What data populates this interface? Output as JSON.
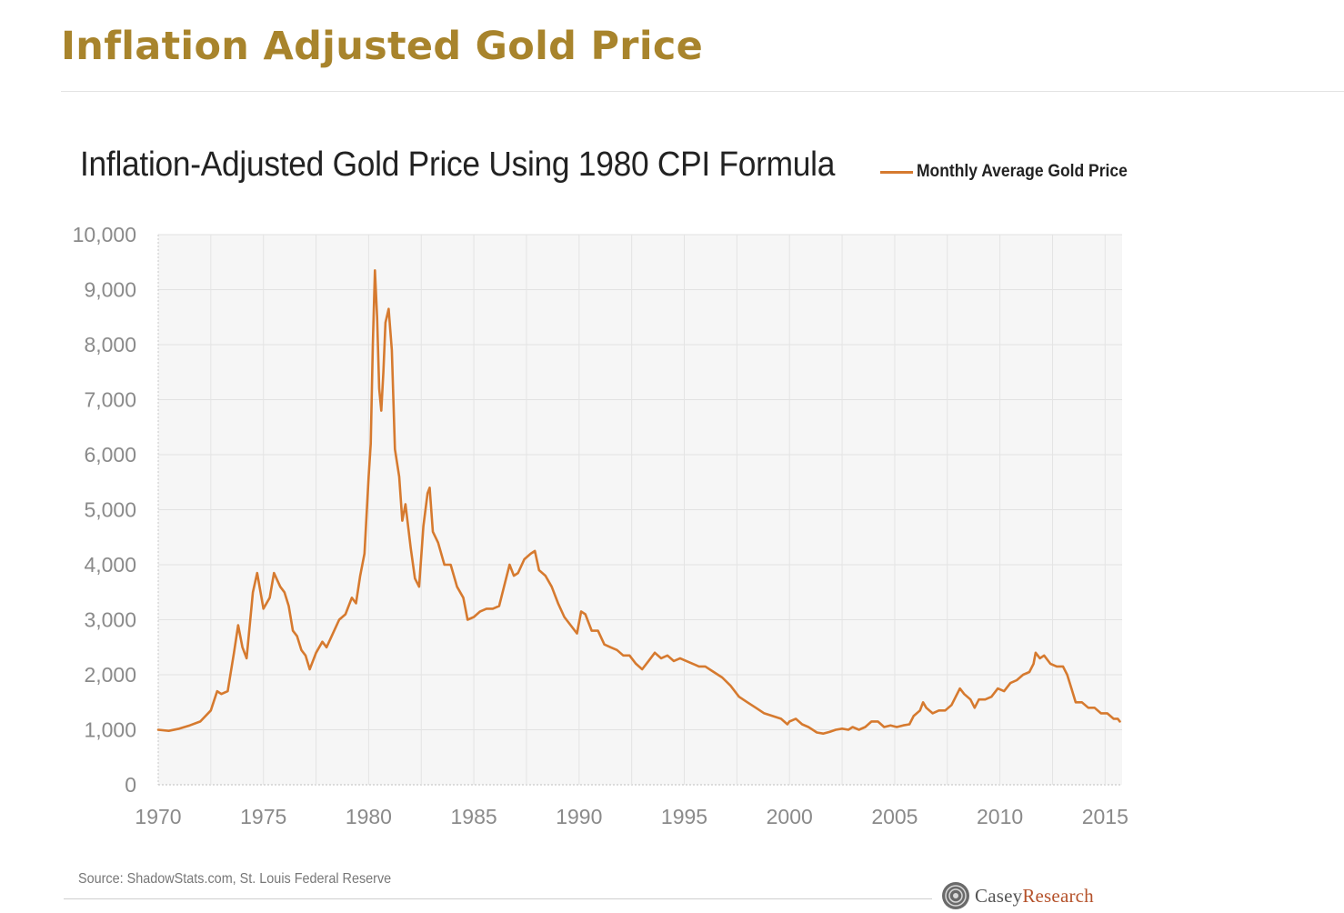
{
  "page": {
    "title": "Inflation Adjusted Gold Price"
  },
  "chart": {
    "title": "Inflation-Adjusted Gold Price Using 1980 CPI Formula",
    "legend_label": "Monthly Average Gold Price",
    "source": "Source: ShadowStats.com, St. Louis Federal Reserve",
    "logo": {
      "text_1": "Casey",
      "text_2": "Research"
    }
  },
  "colors": {
    "heading": "#a8842c",
    "series": "#d67a2f",
    "plot_background": "#f6f6f6",
    "logo_accent": "#b5522b"
  },
  "chart_data": {
    "type": "line",
    "title": "Inflation-Adjusted Gold Price Using 1980 CPI Formula",
    "xlabel": "",
    "ylabel": "",
    "xlim": [
      1970,
      2015.8
    ],
    "ylim": [
      0,
      10000
    ],
    "grid": true,
    "legend_position": "top-right",
    "x_ticks": [
      "1970",
      "1975",
      "1980",
      "1985",
      "1990",
      "1995",
      "2000",
      "2005",
      "2010",
      "2015"
    ],
    "y_ticks": [
      "0",
      "1,000",
      "2,000",
      "3,000",
      "4,000",
      "5,000",
      "6,000",
      "7,000",
      "8,000",
      "9,000",
      "10,000"
    ],
    "series": [
      {
        "name": "Monthly Average Gold Price",
        "color": "#d67a2f",
        "points": [
          [
            1970.0,
            1000
          ],
          [
            1970.5,
            980
          ],
          [
            1971.0,
            1020
          ],
          [
            1971.5,
            1080
          ],
          [
            1972.0,
            1150
          ],
          [
            1972.5,
            1350
          ],
          [
            1972.8,
            1700
          ],
          [
            1973.0,
            1650
          ],
          [
            1973.3,
            1700
          ],
          [
            1973.6,
            2400
          ],
          [
            1973.8,
            2900
          ],
          [
            1974.0,
            2500
          ],
          [
            1974.2,
            2300
          ],
          [
            1974.5,
            3500
          ],
          [
            1974.7,
            3850
          ],
          [
            1975.0,
            3200
          ],
          [
            1975.3,
            3400
          ],
          [
            1975.5,
            3850
          ],
          [
            1975.8,
            3600
          ],
          [
            1976.0,
            3500
          ],
          [
            1976.2,
            3250
          ],
          [
            1976.4,
            2800
          ],
          [
            1976.6,
            2700
          ],
          [
            1976.8,
            2450
          ],
          [
            1977.0,
            2350
          ],
          [
            1977.2,
            2100
          ],
          [
            1977.5,
            2400
          ],
          [
            1977.8,
            2600
          ],
          [
            1978.0,
            2500
          ],
          [
            1978.3,
            2750
          ],
          [
            1978.6,
            3000
          ],
          [
            1978.9,
            3100
          ],
          [
            1979.2,
            3400
          ],
          [
            1979.4,
            3300
          ],
          [
            1979.6,
            3800
          ],
          [
            1979.8,
            4200
          ],
          [
            1980.0,
            5600
          ],
          [
            1980.1,
            6200
          ],
          [
            1980.2,
            8000
          ],
          [
            1980.3,
            9350
          ],
          [
            1980.4,
            8500
          ],
          [
            1980.5,
            7200
          ],
          [
            1980.6,
            6800
          ],
          [
            1980.7,
            7500
          ],
          [
            1980.8,
            8400
          ],
          [
            1980.95,
            8650
          ],
          [
            1981.1,
            7900
          ],
          [
            1981.25,
            6100
          ],
          [
            1981.45,
            5600
          ],
          [
            1981.6,
            4800
          ],
          [
            1981.75,
            5100
          ],
          [
            1982.0,
            4300
          ],
          [
            1982.2,
            3750
          ],
          [
            1982.4,
            3600
          ],
          [
            1982.6,
            4700
          ],
          [
            1982.8,
            5300
          ],
          [
            1982.9,
            5400
          ],
          [
            1983.05,
            4600
          ],
          [
            1983.3,
            4400
          ],
          [
            1983.6,
            4000
          ],
          [
            1983.9,
            4000
          ],
          [
            1984.2,
            3600
          ],
          [
            1984.5,
            3400
          ],
          [
            1984.7,
            3000
          ],
          [
            1985.0,
            3050
          ],
          [
            1985.3,
            3150
          ],
          [
            1985.6,
            3200
          ],
          [
            1985.9,
            3200
          ],
          [
            1986.2,
            3250
          ],
          [
            1986.5,
            3700
          ],
          [
            1986.7,
            4000
          ],
          [
            1986.9,
            3800
          ],
          [
            1987.1,
            3850
          ],
          [
            1987.4,
            4100
          ],
          [
            1987.7,
            4200
          ],
          [
            1987.9,
            4250
          ],
          [
            1988.1,
            3900
          ],
          [
            1988.4,
            3800
          ],
          [
            1988.7,
            3600
          ],
          [
            1989.0,
            3300
          ],
          [
            1989.3,
            3050
          ],
          [
            1989.6,
            2900
          ],
          [
            1989.9,
            2750
          ],
          [
            1990.1,
            3150
          ],
          [
            1990.3,
            3100
          ],
          [
            1990.6,
            2800
          ],
          [
            1990.9,
            2800
          ],
          [
            1991.2,
            2550
          ],
          [
            1991.5,
            2500
          ],
          [
            1991.8,
            2450
          ],
          [
            1992.1,
            2350
          ],
          [
            1992.4,
            2350
          ],
          [
            1992.7,
            2200
          ],
          [
            1993.0,
            2100
          ],
          [
            1993.3,
            2250
          ],
          [
            1993.6,
            2400
          ],
          [
            1993.9,
            2300
          ],
          [
            1994.2,
            2350
          ],
          [
            1994.5,
            2250
          ],
          [
            1994.8,
            2300
          ],
          [
            1995.1,
            2250
          ],
          [
            1995.4,
            2200
          ],
          [
            1995.7,
            2150
          ],
          [
            1996.0,
            2150
          ],
          [
            1996.4,
            2050
          ],
          [
            1996.8,
            1950
          ],
          [
            1997.2,
            1800
          ],
          [
            1997.6,
            1600
          ],
          [
            1998.0,
            1500
          ],
          [
            1998.4,
            1400
          ],
          [
            1998.8,
            1300
          ],
          [
            1999.2,
            1250
          ],
          [
            1999.6,
            1200
          ],
          [
            1999.9,
            1100
          ],
          [
            2000.0,
            1150
          ],
          [
            2000.3,
            1200
          ],
          [
            2000.6,
            1100
          ],
          [
            2000.9,
            1050
          ],
          [
            2001.3,
            950
          ],
          [
            2001.6,
            930
          ],
          [
            2001.9,
            960
          ],
          [
            2002.2,
            1000
          ],
          [
            2002.5,
            1020
          ],
          [
            2002.8,
            1000
          ],
          [
            2003.0,
            1050
          ],
          [
            2003.3,
            1000
          ],
          [
            2003.6,
            1050
          ],
          [
            2003.9,
            1150
          ],
          [
            2004.2,
            1150
          ],
          [
            2004.5,
            1050
          ],
          [
            2004.8,
            1080
          ],
          [
            2005.1,
            1050
          ],
          [
            2005.4,
            1080
          ],
          [
            2005.7,
            1100
          ],
          [
            2005.9,
            1250
          ],
          [
            2006.2,
            1350
          ],
          [
            2006.35,
            1500
          ],
          [
            2006.5,
            1400
          ],
          [
            2006.8,
            1300
          ],
          [
            2007.1,
            1350
          ],
          [
            2007.4,
            1350
          ],
          [
            2007.7,
            1450
          ],
          [
            2007.9,
            1600
          ],
          [
            2008.1,
            1750
          ],
          [
            2008.3,
            1650
          ],
          [
            2008.6,
            1550
          ],
          [
            2008.8,
            1400
          ],
          [
            2009.0,
            1550
          ],
          [
            2009.3,
            1550
          ],
          [
            2009.6,
            1600
          ],
          [
            2009.9,
            1750
          ],
          [
            2010.2,
            1700
          ],
          [
            2010.5,
            1850
          ],
          [
            2010.8,
            1900
          ],
          [
            2011.1,
            2000
          ],
          [
            2011.4,
            2050
          ],
          [
            2011.6,
            2200
          ],
          [
            2011.7,
            2400
          ],
          [
            2011.9,
            2300
          ],
          [
            2012.1,
            2350
          ],
          [
            2012.4,
            2200
          ],
          [
            2012.7,
            2150
          ],
          [
            2013.0,
            2150
          ],
          [
            2013.2,
            2000
          ],
          [
            2013.4,
            1750
          ],
          [
            2013.6,
            1500
          ],
          [
            2013.9,
            1500
          ],
          [
            2014.2,
            1400
          ],
          [
            2014.5,
            1400
          ],
          [
            2014.8,
            1300
          ],
          [
            2015.1,
            1300
          ],
          [
            2015.4,
            1200
          ],
          [
            2015.6,
            1200
          ],
          [
            2015.7,
            1150
          ]
        ]
      }
    ]
  }
}
